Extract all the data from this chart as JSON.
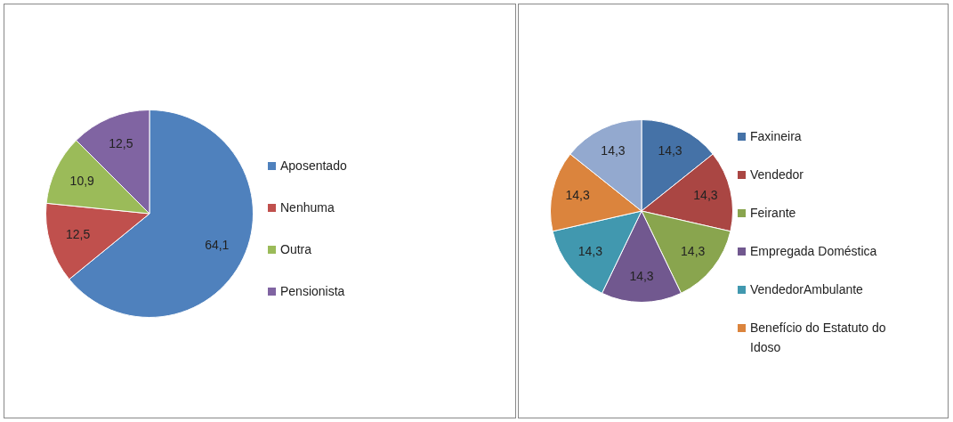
{
  "chart_data": [
    {
      "type": "pie",
      "categories": [
        "Aposentado",
        "Nenhuma",
        "Outra",
        "Pensionista"
      ],
      "values": [
        64.1,
        12.5,
        10.9,
        12.5
      ],
      "colors": [
        "#4f81bd",
        "#c0504d",
        "#9bbb59",
        "#8064a2"
      ],
      "value_labels": [
        "64,1",
        "12,5",
        "10,9",
        "12,5"
      ],
      "legend": "right"
    },
    {
      "type": "pie",
      "categories": [
        "Faxineira",
        "Vendedor",
        "Feirante",
        "Empregada Doméstica",
        "VendedorAmbulante",
        "Benefício do Estatuto do Idoso",
        null
      ],
      "values": [
        14.3,
        14.3,
        14.3,
        14.3,
        14.3,
        14.3,
        14.3
      ],
      "colors": [
        "#4572a7",
        "#aa4643",
        "#89a54e",
        "#71588f",
        "#4198af",
        "#db843d",
        "#93a9cf"
      ],
      "value_labels": [
        "14,3",
        "14,3",
        "14,3",
        "14,3",
        "14,3",
        "14,3",
        "14,3"
      ],
      "legend": "right"
    }
  ]
}
